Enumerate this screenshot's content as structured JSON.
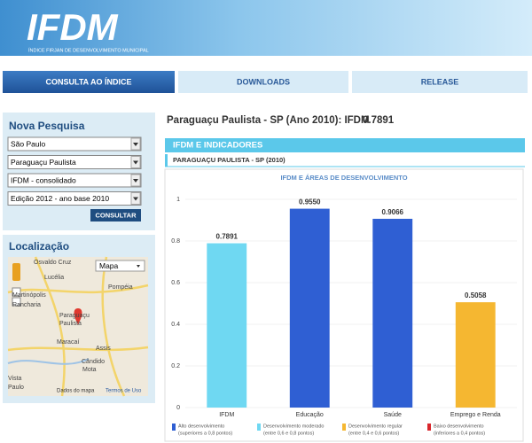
{
  "header": {
    "logo": "IFDM",
    "subtitle": "ÍNDICE FIRJAN DE DESENVOLVIMENTO MUNICIPAL"
  },
  "tabs": [
    "CONSULTA AO ÍNDICE",
    "DOWNLOADS",
    "RELEASE"
  ],
  "search": {
    "title": "Nova Pesquisa",
    "fields": [
      "São Paulo",
      "Paraguaçu Paulista",
      "IFDM - consolidado",
      "Edição 2012 - ano base 2010"
    ],
    "button": "CONSULTAR"
  },
  "location": {
    "title": "Localização",
    "map_type": "Mapa",
    "places": [
      "Osvaldo Cruz",
      "Lucélia",
      "Martinópolis",
      "Rancharia",
      "Paraguaçu",
      "Paulista",
      "Pompéia",
      "Maracaí",
      "Assis",
      "Cândido",
      "Mota",
      "Vista",
      "Paulo"
    ],
    "attribution": "Dados do mapa",
    "terms": "Termos de Uso"
  },
  "result": {
    "heading": "Paraguaçu Paulista - SP (Ano 2010): IFDM",
    "score": 0.7891,
    "section": "IFDM E INDICADORES",
    "subsection": "PARAGUAÇU PAULISTA - SP (2010)"
  },
  "chart_data": {
    "type": "bar",
    "title": "IFDM E ÁREAS DE DESENVOLVIMENTO",
    "categories": [
      "IFDM",
      "Educação",
      "Saúde",
      "Emprego e Renda"
    ],
    "values": [
      0.7891,
      0.955,
      0.9066,
      0.5058
    ],
    "value_labels": [
      "0.7891",
      "0.9550",
      "0.9066",
      "0.5058"
    ],
    "colors": [
      "#6fd8f2",
      "#2f5fd3",
      "#2f5fd3",
      "#f5b731"
    ],
    "ylim": [
      0,
      1
    ],
    "yticks": [
      0,
      0.2,
      0.4,
      0.6,
      0.8,
      1
    ],
    "grid": true,
    "legend": [
      {
        "name": "Alto desenvolvimento",
        "note": "(superiores a 0,8 pontos)",
        "color": "#2f5fd3"
      },
      {
        "name": "Desenvolvimento moderado",
        "note": "(entre 0,6 e 0,8 pontos)",
        "color": "#6fd8f2"
      },
      {
        "name": "Desenvolvimento regular",
        "note": "(entre 0,4 e 0,6 pontos)",
        "color": "#f5b731"
      },
      {
        "name": "Baixo desenvolvimento",
        "note": "(inferiores a 0,4 pontos)",
        "color": "#d9262c"
      }
    ]
  }
}
